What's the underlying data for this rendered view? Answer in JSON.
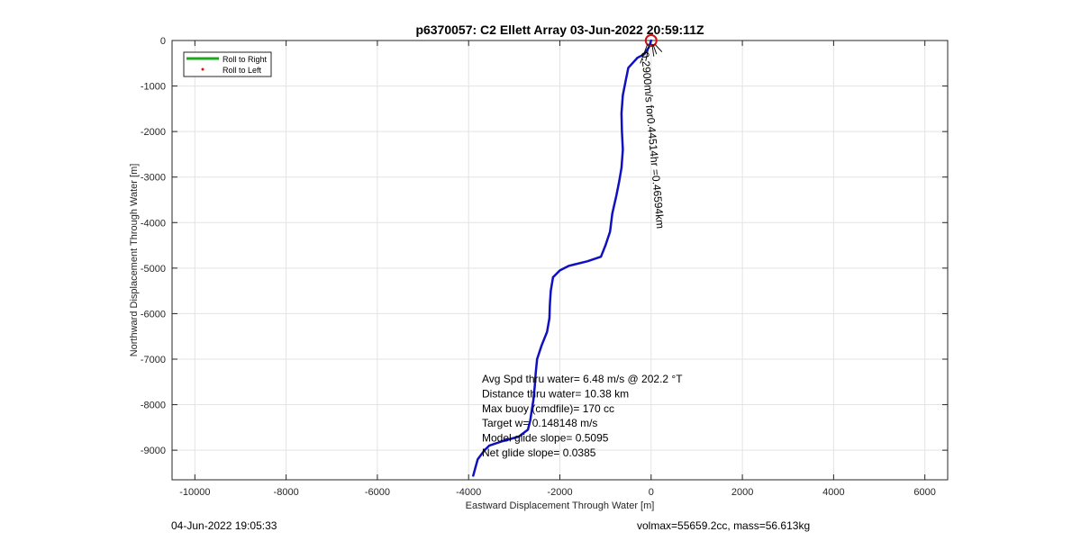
{
  "chart_data": {
    "type": "line",
    "title": "p6370057: C2 Ellett Array 03-Jun-2022 20:59:11Z",
    "xlabel": "Eastward Displacement Through Water [m]",
    "ylabel": "Northward Displacement Through Water [m]",
    "xlim": [
      -10500,
      6500
    ],
    "ylim": [
      -9650,
      0
    ],
    "grid": true,
    "x_ticks": [
      -10000,
      -8000,
      -6000,
      -4000,
      -2000,
      0,
      2000,
      4000,
      6000
    ],
    "x_tick_labels": [
      "-10000",
      "-8000",
      "-6000",
      "-4000",
      "-2000",
      "0",
      "2000",
      "4000",
      "6000"
    ],
    "y_ticks": [
      0,
      -1000,
      -2000,
      -3000,
      -4000,
      -5000,
      -6000,
      -7000,
      -8000,
      -9000
    ],
    "y_tick_labels": [
      "0",
      "-1000",
      "-2000",
      "-3000",
      "-4000",
      "-5000",
      "-6000",
      "-7000",
      "-8000",
      "-9000"
    ],
    "legend": {
      "position": "top-left",
      "entries": [
        {
          "label": "Roll to Right",
          "color": "#1fa81f",
          "style": "line"
        },
        {
          "label": "Roll to Left",
          "color": "#e01010",
          "style": "dot"
        }
      ]
    },
    "series": [
      {
        "color": "#1010c0",
        "x": [
          0,
          -50,
          -150,
          -300,
          -500,
          -560,
          -620,
          -650,
          -640,
          -620,
          -650,
          -700,
          -760,
          -850,
          -900,
          -1000,
          -1100,
          -1400,
          -1800,
          -2000,
          -2150,
          -2200,
          -2220,
          -2230,
          -2280,
          -2400,
          -2500,
          -2530,
          -2550,
          -2580,
          -2620,
          -2650,
          -2700,
          -2900,
          -3250,
          -3550,
          -3650,
          -3800,
          -3900
        ],
        "y": [
          0,
          -150,
          -300,
          -380,
          -600,
          -900,
          -1200,
          -1600,
          -2000,
          -2400,
          -2800,
          -3100,
          -3400,
          -3800,
          -4200,
          -4500,
          -4750,
          -4850,
          -4950,
          -5050,
          -5200,
          -5500,
          -5800,
          -6100,
          -6400,
          -6700,
          -7000,
          -7300,
          -7600,
          -7900,
          -8150,
          -8350,
          -8550,
          -8700,
          -8800,
          -8900,
          -9000,
          -9200,
          -9560
        ]
      }
    ],
    "marker": {
      "x": 0,
      "y": 0,
      "color": "#d01010",
      "shape": "circle"
    },
    "annotations": {
      "rotated_label": "0.2900m/s for0.44514hr =0.46594km",
      "lines": [
        "Avg Spd thru water=  6.48 m/s @ 202.2 °T",
        "Distance thru water= 10.38 km",
        "Max buoy (cmdfile)= 170 cc",
        "Target w= 0.148148 m/s",
        "Model glide slope= 0.5095",
        "Net glide slope= 0.0385"
      ]
    }
  },
  "footer": {
    "left": "04-Jun-2022 19:05:33",
    "right": "volmax=55659.2cc, mass=56.613kg"
  }
}
